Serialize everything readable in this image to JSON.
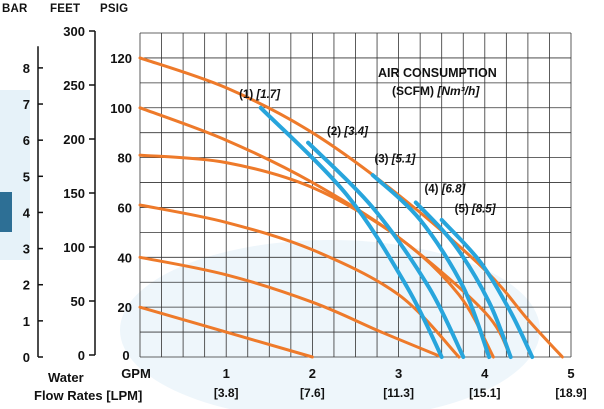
{
  "headers": {
    "bar": "BAR",
    "feet": "FEET",
    "psig": "PSIG"
  },
  "legend": {
    "title": "AIR CONSUMPTION",
    "subtitle_prefix": "(SCFM) ",
    "subtitle_units": "[Nm³/h]"
  },
  "xlabel": {
    "water": "Water",
    "flow_rates": "Flow Rates [LPM]"
  },
  "colors": {
    "orange": "#ee7a2a",
    "blue": "#28a5dc",
    "grid": "#333333",
    "watermark": "#cfe6f2"
  },
  "chart_data": {
    "type": "line",
    "title": "AIR CONSUMPTION",
    "x_unit": "GPM",
    "xlim": [
      0,
      5
    ],
    "ylim": [
      0,
      130
    ],
    "x_ticks": [
      {
        "v": 0,
        "gpm": "0",
        "lpm": ""
      },
      {
        "v": 1,
        "gpm": "1",
        "lpm": "[3.8]"
      },
      {
        "v": 2,
        "gpm": "2",
        "lpm": "[7.6]"
      },
      {
        "v": 3,
        "gpm": "3",
        "lpm": "[11.3]"
      },
      {
        "v": 4,
        "gpm": "4",
        "lpm": "[15.1]"
      },
      {
        "v": 5,
        "gpm": "5",
        "lpm": "[18.9]"
      }
    ],
    "psig_ticks": [
      "0",
      "20",
      "40",
      "60",
      "80",
      "100",
      "120"
    ],
    "feet_ticks": [
      "0",
      "50",
      "100",
      "150",
      "200",
      "250",
      "300"
    ],
    "bar_ticks": [
      "0",
      "1",
      "2",
      "3",
      "4",
      "5",
      "6",
      "7",
      "8"
    ],
    "pressure_curves": [
      {
        "points": [
          [
            0,
            120
          ],
          [
            1,
            108
          ],
          [
            2,
            90
          ],
          [
            3,
            65
          ],
          [
            4,
            35
          ],
          [
            4.5,
            15
          ],
          [
            4.9,
            0
          ]
        ]
      },
      {
        "points": [
          [
            0,
            100
          ],
          [
            1,
            87
          ],
          [
            2,
            70
          ],
          [
            3,
            48
          ],
          [
            4,
            18
          ],
          [
            4.3,
            0
          ]
        ]
      },
      {
        "points": [
          [
            0,
            81
          ],
          [
            1,
            78
          ],
          [
            2,
            68
          ],
          [
            3,
            48
          ],
          [
            3.7,
            25
          ],
          [
            4.1,
            0
          ]
        ]
      },
      {
        "points": [
          [
            0,
            61
          ],
          [
            1,
            54
          ],
          [
            2,
            43
          ],
          [
            3,
            25
          ],
          [
            3.7,
            0
          ]
        ]
      },
      {
        "points": [
          [
            0,
            40
          ],
          [
            1,
            33
          ],
          [
            2,
            22
          ],
          [
            2.8,
            10
          ],
          [
            3.5,
            0
          ]
        ]
      },
      {
        "points": [
          [
            0,
            20
          ],
          [
            1,
            10
          ],
          [
            2,
            0
          ]
        ]
      }
    ],
    "air_curves": [
      {
        "label_num": "(1) ",
        "label_unit": "[1.7]",
        "points": [
          [
            1.4,
            100
          ],
          [
            2.4,
            65
          ],
          [
            3.1,
            28
          ],
          [
            3.5,
            0
          ]
        ],
        "label_at": [
          1.15,
          104
        ]
      },
      {
        "label_num": "(2) ",
        "label_unit": "[3.4]",
        "points": [
          [
            1.95,
            86
          ],
          [
            2.7,
            60
          ],
          [
            3.35,
            28
          ],
          [
            3.75,
            0
          ]
        ],
        "label_at": [
          2.17,
          89
        ]
      },
      {
        "label_num": "(3) ",
        "label_unit": "[5.1]",
        "points": [
          [
            2.7,
            73
          ],
          [
            3.25,
            55
          ],
          [
            3.75,
            28
          ],
          [
            4.05,
            0
          ]
        ],
        "label_at": [
          2.72,
          78
        ]
      },
      {
        "label_num": "(4) ",
        "label_unit": "[6.8]",
        "points": [
          [
            3.2,
            62
          ],
          [
            3.65,
            45
          ],
          [
            4.05,
            22
          ],
          [
            4.3,
            0
          ]
        ],
        "label_at": [
          3.3,
          66
        ]
      },
      {
        "label_num": "(5) ",
        "label_unit": "[8.5]",
        "points": [
          [
            3.5,
            55
          ],
          [
            3.95,
            38
          ],
          [
            4.3,
            18
          ],
          [
            4.55,
            0
          ]
        ],
        "label_at": [
          3.65,
          58
        ]
      }
    ]
  }
}
